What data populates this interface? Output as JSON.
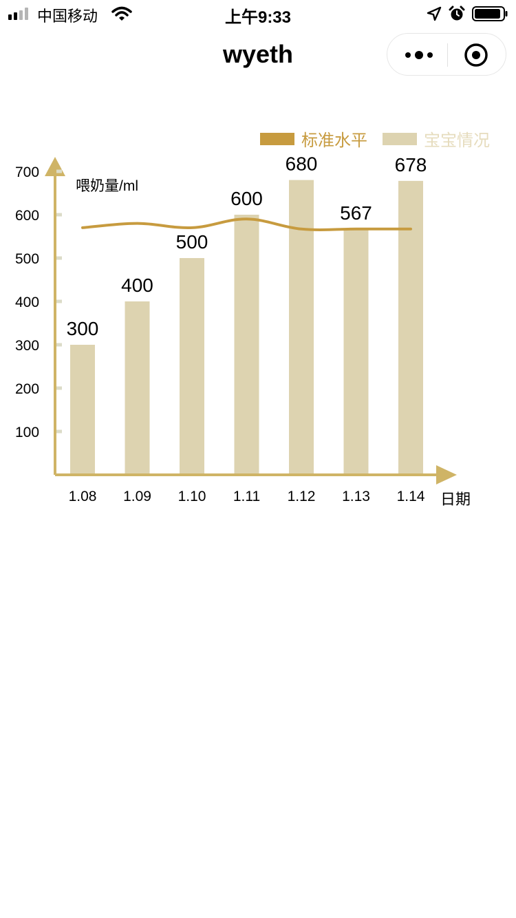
{
  "status_bar": {
    "carrier": "中国移动",
    "time": "上午9:33"
  },
  "nav": {
    "title": "wyeth"
  },
  "colors": {
    "axis": "#cfb466",
    "bar": "#ddd3b0",
    "line": "#c79b3f",
    "tick_mark": "#dcdcc8"
  },
  "chart_data": {
    "type": "bar",
    "ylabel": "喂奶量/ml",
    "xlabel": "日期",
    "y_ticks": [
      "100",
      "200",
      "300",
      "400",
      "500",
      "600",
      "700"
    ],
    "ylim": [
      0,
      700
    ],
    "categories": [
      "1.08",
      "1.09",
      "1.10",
      "1.11",
      "1.12",
      "1.13",
      "1.14"
    ],
    "series": [
      {
        "name": "宝宝情况",
        "type": "bar",
        "values": [
          300,
          400,
          500,
          600,
          680,
          567,
          678
        ]
      },
      {
        "name": "标准水平",
        "type": "line",
        "values": [
          570,
          580,
          570,
          590,
          567,
          567,
          567
        ]
      }
    ],
    "legend": [
      "标准水平",
      "宝宝情况"
    ],
    "legend_position": "top-right"
  }
}
